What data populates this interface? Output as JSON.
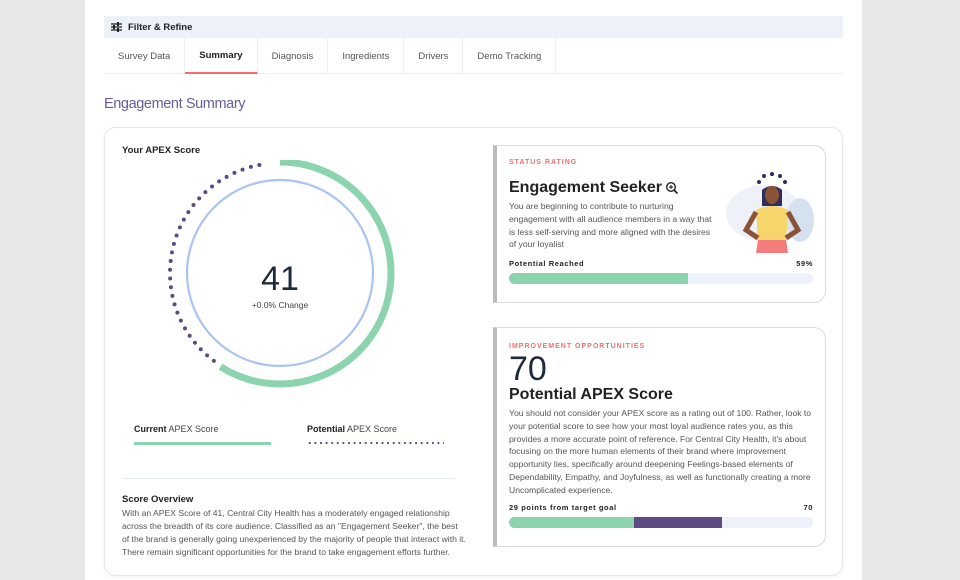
{
  "filter": {
    "label": "Filter & Refine"
  },
  "tabs": [
    {
      "label": "Survey Data"
    },
    {
      "label": "Summary",
      "active": true
    },
    {
      "label": "Diagnosis"
    },
    {
      "label": "Ingredients"
    },
    {
      "label": "Drivers"
    },
    {
      "label": "Demo Tracking"
    }
  ],
  "page_title": "Engagement Summary",
  "score": {
    "heading": "Your APEX Score",
    "value": "41",
    "change": "+0.0% Change",
    "current_fraction": 0.59,
    "potential_fraction": 0.97
  },
  "legend": {
    "current_bold": "Current",
    "current_rest": " APEX Score",
    "potential_bold": "Potential",
    "potential_rest": " APEX Score"
  },
  "overview": {
    "heading": "Score Overview",
    "text": "With an APEX Score of 41, Central City Health has a moderately engaged relationship across the breadth of its core audience. Classified as an \"Engagement Seeker\", the best of the brand is generally going unexperienced by the majority of people that interact with it. There remain significant opportunities for the brand to take engagement efforts further."
  },
  "status": {
    "eyebrow": "STATUS RATING",
    "title": "Engagement Seeker",
    "text": "You are beginning to contribute to nurturing engagement with all audience members in a way that is less self-serving and more aligned with the desires of your loyalist",
    "bar_label": "Potential Reached",
    "bar_value": "59%",
    "percent": 59
  },
  "improve": {
    "eyebrow": "IMPROVEMENT OPPORTUNITIES",
    "value": "70",
    "title": "Potential APEX Score",
    "text": "You should not consider your APEX score as a rating out of 100. Rather, look to your potential score to see how your most loyal audience rates you, as this provides a more accurate point of reference. For Central City Health, it's about focusing on the more human elements of their brand where improvement opportunity lies, specifically around deepening Feelings-based elements of Dependability, Empathy, and Joyfulness, as well as functionally creating a more Uncomplicated experience.",
    "bar_label": "29 points from target goal",
    "bar_value": "70",
    "current": 41,
    "target": 70
  },
  "colors": {
    "green": "#8cd4ad",
    "purple": "#5e4a82",
    "blue": "#a9c4f0",
    "coral": "#f26d6d"
  }
}
